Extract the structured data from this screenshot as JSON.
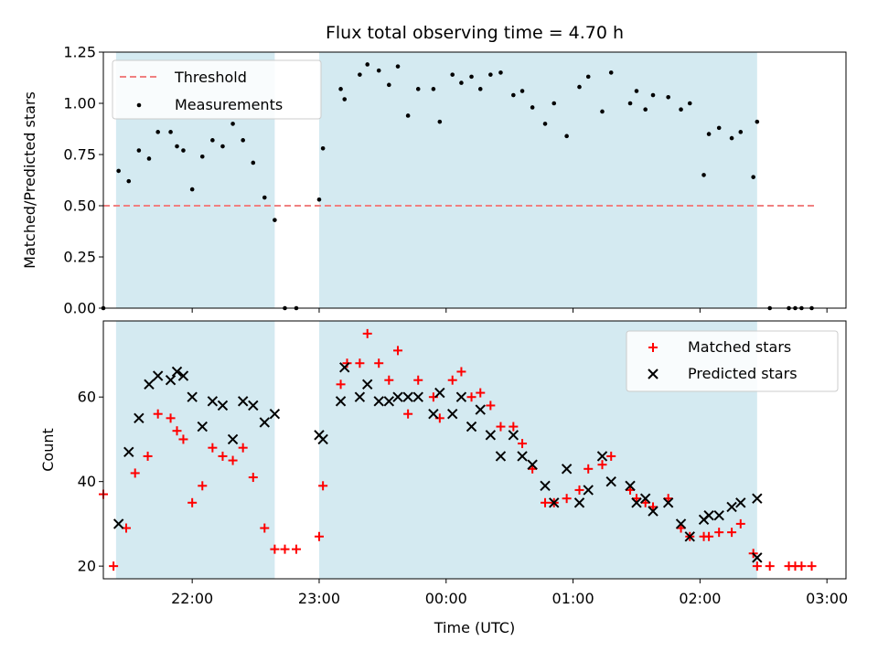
{
  "chart_data": [
    {
      "type": "scatter",
      "title": "Flux total observing time = 4.70 h",
      "xlabel": "",
      "ylabel": "Matched/Predicted stars",
      "ylim": [
        0,
        1.25
      ],
      "yticks": [
        "0.00",
        "0.25",
        "0.50",
        "0.75",
        "1.00",
        "1.25"
      ],
      "legend_position": "top-left",
      "observing_windows_hours": [
        [
          21.4,
          22.65
        ],
        [
          23.0,
          26.45
        ]
      ],
      "threshold": {
        "name": "Threshold",
        "value": 0.5,
        "x_range": [
          21.3,
          26.9
        ],
        "color": "#f08080"
      },
      "series": [
        {
          "name": "Measurements",
          "color": "#000000",
          "points": [
            [
              21.3,
              0.0
            ],
            [
              21.42,
              0.67
            ],
            [
              21.5,
              0.62
            ],
            [
              21.58,
              0.77
            ],
            [
              21.66,
              0.73
            ],
            [
              21.73,
              0.86
            ],
            [
              21.83,
              0.86
            ],
            [
              21.88,
              0.79
            ],
            [
              21.93,
              0.77
            ],
            [
              22.0,
              0.58
            ],
            [
              22.08,
              0.74
            ],
            [
              22.16,
              0.82
            ],
            [
              22.24,
              0.79
            ],
            [
              22.32,
              0.9
            ],
            [
              22.4,
              0.82
            ],
            [
              22.48,
              0.71
            ],
            [
              22.57,
              0.54
            ],
            [
              22.65,
              0.43
            ],
            [
              22.73,
              0.0
            ],
            [
              22.82,
              0.0
            ],
            [
              23.0,
              0.53
            ],
            [
              23.03,
              0.78
            ],
            [
              23.17,
              1.07
            ],
            [
              23.2,
              1.02
            ],
            [
              23.32,
              1.14
            ],
            [
              23.38,
              1.19
            ],
            [
              23.47,
              1.16
            ],
            [
              23.55,
              1.09
            ],
            [
              23.62,
              1.18
            ],
            [
              23.7,
              0.94
            ],
            [
              23.78,
              1.07
            ],
            [
              23.9,
              1.07
            ],
            [
              23.95,
              0.91
            ],
            [
              24.05,
              1.14
            ],
            [
              24.12,
              1.1
            ],
            [
              24.2,
              1.13
            ],
            [
              24.27,
              1.07
            ],
            [
              24.35,
              1.14
            ],
            [
              24.43,
              1.15
            ],
            [
              24.53,
              1.04
            ],
            [
              24.6,
              1.06
            ],
            [
              24.68,
              0.98
            ],
            [
              24.78,
              0.9
            ],
            [
              24.85,
              1.0
            ],
            [
              24.95,
              0.84
            ],
            [
              25.05,
              1.08
            ],
            [
              25.12,
              1.13
            ],
            [
              25.23,
              0.96
            ],
            [
              25.3,
              1.15
            ],
            [
              25.45,
              1.0
            ],
            [
              25.5,
              1.06
            ],
            [
              25.57,
              0.97
            ],
            [
              25.63,
              1.04
            ],
            [
              25.75,
              1.03
            ],
            [
              25.85,
              0.97
            ],
            [
              25.92,
              1.0
            ],
            [
              26.03,
              0.65
            ],
            [
              26.07,
              0.85
            ],
            [
              26.15,
              0.88
            ],
            [
              26.25,
              0.83
            ],
            [
              26.32,
              0.86
            ],
            [
              26.42,
              0.64
            ],
            [
              26.45,
              0.91
            ],
            [
              26.55,
              0.0
            ],
            [
              26.7,
              0.0
            ],
            [
              26.75,
              0.0
            ],
            [
              26.8,
              0.0
            ],
            [
              26.88,
              0.0
            ]
          ]
        }
      ]
    },
    {
      "type": "scatter",
      "title": "",
      "xlabel": "Time (UTC)",
      "ylabel": "Count",
      "ylim": [
        17,
        78
      ],
      "yticks": [
        "20",
        "40",
        "60"
      ],
      "xticks": [
        {
          "hour": 22,
          "label": "22:00"
        },
        {
          "hour": 23,
          "label": "23:00"
        },
        {
          "hour": 24,
          "label": "00:00"
        },
        {
          "hour": 25,
          "label": "01:00"
        },
        {
          "hour": 26,
          "label": "02:00"
        },
        {
          "hour": 27,
          "label": "03:00"
        }
      ],
      "legend_position": "top-right",
      "observing_windows_hours": [
        [
          21.4,
          22.65
        ],
        [
          23.0,
          26.45
        ]
      ],
      "series": [
        {
          "name": "Matched stars",
          "marker": "plus",
          "color": "#ff0000",
          "points": [
            [
              21.3,
              37
            ],
            [
              21.38,
              20
            ],
            [
              21.48,
              29
            ],
            [
              21.55,
              42
            ],
            [
              21.65,
              46
            ],
            [
              21.73,
              56
            ],
            [
              21.83,
              55
            ],
            [
              21.88,
              52
            ],
            [
              21.93,
              50
            ],
            [
              22.0,
              35
            ],
            [
              22.08,
              39
            ],
            [
              22.16,
              48
            ],
            [
              22.24,
              46
            ],
            [
              22.32,
              45
            ],
            [
              22.4,
              48
            ],
            [
              22.48,
              41
            ],
            [
              22.57,
              29
            ],
            [
              22.65,
              24
            ],
            [
              22.73,
              24
            ],
            [
              22.82,
              24
            ],
            [
              23.0,
              27
            ],
            [
              23.03,
              39
            ],
            [
              23.17,
              63
            ],
            [
              23.22,
              68
            ],
            [
              23.32,
              68
            ],
            [
              23.38,
              75
            ],
            [
              23.47,
              68
            ],
            [
              23.55,
              64
            ],
            [
              23.62,
              71
            ],
            [
              23.7,
              56
            ],
            [
              23.78,
              64
            ],
            [
              23.9,
              60
            ],
            [
              23.95,
              55
            ],
            [
              24.05,
              64
            ],
            [
              24.12,
              66
            ],
            [
              24.2,
              60
            ],
            [
              24.27,
              61
            ],
            [
              24.35,
              58
            ],
            [
              24.43,
              53
            ],
            [
              24.53,
              53
            ],
            [
              24.6,
              49
            ],
            [
              24.68,
              43
            ],
            [
              24.78,
              35
            ],
            [
              24.85,
              35
            ],
            [
              24.95,
              36
            ],
            [
              25.05,
              38
            ],
            [
              25.12,
              43
            ],
            [
              25.23,
              44
            ],
            [
              25.3,
              46
            ],
            [
              25.45,
              38
            ],
            [
              25.5,
              36
            ],
            [
              25.57,
              35
            ],
            [
              25.63,
              34
            ],
            [
              25.75,
              36
            ],
            [
              25.85,
              29
            ],
            [
              25.92,
              27
            ],
            [
              26.03,
              27
            ],
            [
              26.07,
              27
            ],
            [
              26.15,
              28
            ],
            [
              26.25,
              28
            ],
            [
              26.32,
              30
            ],
            [
              26.42,
              23
            ],
            [
              26.45,
              20
            ],
            [
              26.55,
              20
            ],
            [
              26.7,
              20
            ],
            [
              26.75,
              20
            ],
            [
              26.8,
              20
            ],
            [
              26.88,
              20
            ]
          ]
        },
        {
          "name": "Predicted stars",
          "marker": "cross",
          "color": "#000000",
          "points": [
            [
              21.42,
              30
            ],
            [
              21.5,
              47
            ],
            [
              21.58,
              55
            ],
            [
              21.66,
              63
            ],
            [
              21.73,
              65
            ],
            [
              21.83,
              64
            ],
            [
              21.88,
              66
            ],
            [
              21.93,
              65
            ],
            [
              22.0,
              60
            ],
            [
              22.08,
              53
            ],
            [
              22.16,
              59
            ],
            [
              22.24,
              58
            ],
            [
              22.32,
              50
            ],
            [
              22.4,
              59
            ],
            [
              22.48,
              58
            ],
            [
              22.57,
              54
            ],
            [
              22.65,
              56
            ],
            [
              23.0,
              51
            ],
            [
              23.03,
              50
            ],
            [
              23.17,
              59
            ],
            [
              23.2,
              67
            ],
            [
              23.32,
              60
            ],
            [
              23.38,
              63
            ],
            [
              23.47,
              59
            ],
            [
              23.55,
              59
            ],
            [
              23.62,
              60
            ],
            [
              23.7,
              60
            ],
            [
              23.78,
              60
            ],
            [
              23.9,
              56
            ],
            [
              23.95,
              61
            ],
            [
              24.05,
              56
            ],
            [
              24.12,
              60
            ],
            [
              24.2,
              53
            ],
            [
              24.27,
              57
            ],
            [
              24.35,
              51
            ],
            [
              24.43,
              46
            ],
            [
              24.53,
              51
            ],
            [
              24.6,
              46
            ],
            [
              24.68,
              44
            ],
            [
              24.78,
              39
            ],
            [
              24.85,
              35
            ],
            [
              24.95,
              43
            ],
            [
              25.05,
              35
            ],
            [
              25.12,
              38
            ],
            [
              25.23,
              46
            ],
            [
              25.3,
              40
            ],
            [
              25.45,
              39
            ],
            [
              25.5,
              35
            ],
            [
              25.57,
              36
            ],
            [
              25.63,
              33
            ],
            [
              25.75,
              35
            ],
            [
              25.85,
              30
            ],
            [
              25.92,
              27
            ],
            [
              26.03,
              31
            ],
            [
              26.07,
              32
            ],
            [
              26.15,
              32
            ],
            [
              26.25,
              34
            ],
            [
              26.32,
              35
            ],
            [
              26.45,
              36
            ],
            [
              26.45,
              22
            ]
          ]
        }
      ]
    }
  ]
}
